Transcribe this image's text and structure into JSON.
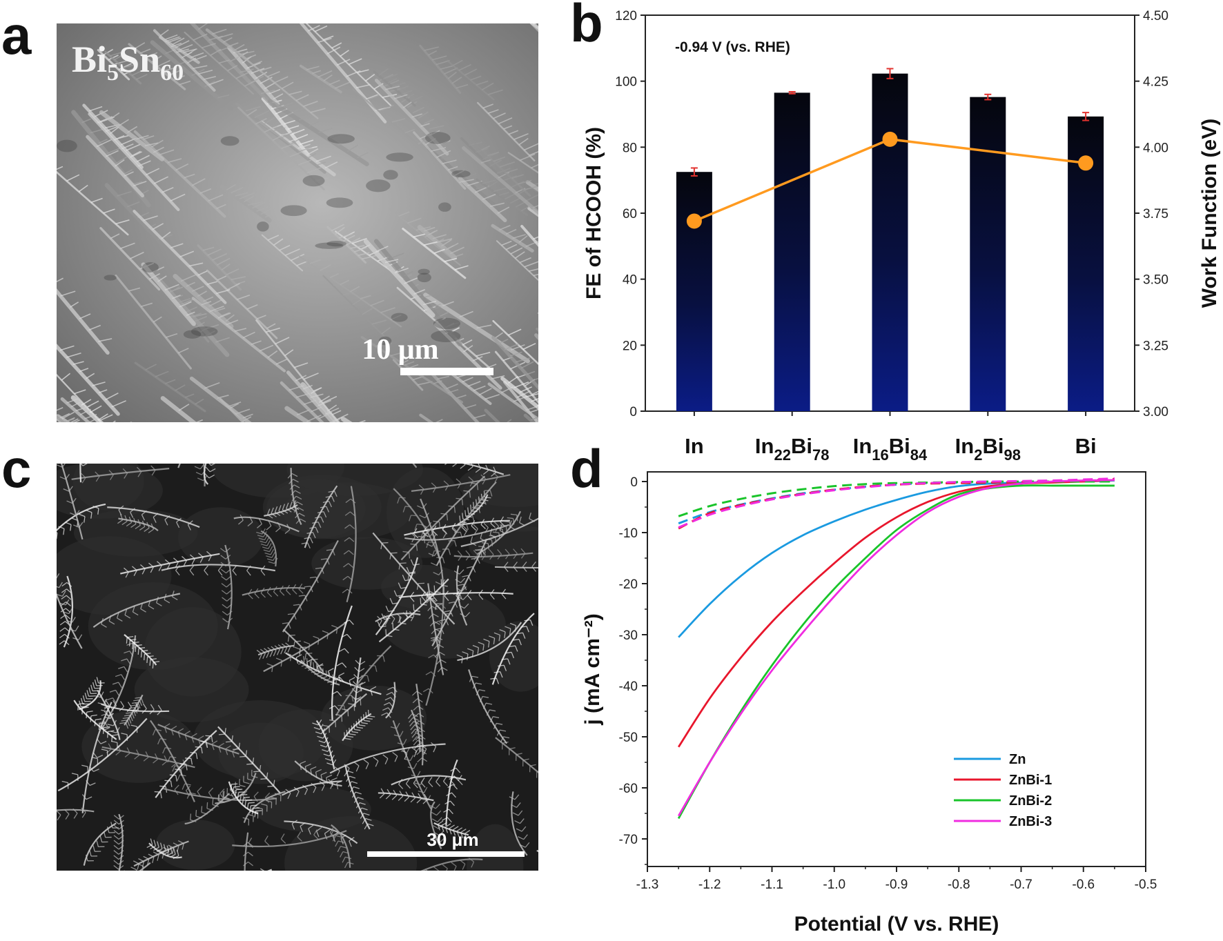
{
  "panels": {
    "a": {
      "letter": "a",
      "label_main": "Bi",
      "label_sub1": "5",
      "label_mid": "Sn",
      "label_sub2": "60",
      "scale_bar": "10 μm"
    },
    "b": {
      "letter": "b",
      "annotation": "-0.94 V (vs. RHE)",
      "ylabel_left": "FE of HCOOH (%)",
      "ylabel_right": "Work Function (eV)"
    },
    "c": {
      "letter": "c",
      "scale_bar": "30 μm"
    },
    "d": {
      "letter": "d",
      "xlabel": "Potential (V vs. RHE)",
      "ylabel": "j (mA cm⁻²)"
    }
  },
  "colors": {
    "bar_top": "#05060d",
    "bar_bottom": "#0a1a7a",
    "work_function_line": "#ff9a1f",
    "error_bar": "#e2332f",
    "zn": "#1a9ae0",
    "znbi1": "#e8162c",
    "znbi2": "#19c42a",
    "znbi3": "#f02ce0"
  },
  "chart_data": [
    {
      "id": "b",
      "type": "bar",
      "categories": [
        {
          "base": "In",
          "parts": []
        },
        {
          "base": "In",
          "parts": [
            [
              "22",
              true
            ],
            [
              "Bi",
              false
            ],
            [
              "78",
              true
            ]
          ]
        },
        {
          "base": "In",
          "parts": [
            [
              "16",
              true
            ],
            [
              "Bi",
              false
            ],
            [
              "84",
              true
            ]
          ]
        },
        {
          "base": "In",
          "parts": [
            [
              "2",
              true
            ],
            [
              "Bi",
              false
            ],
            [
              "98",
              true
            ]
          ]
        },
        {
          "base": "Bi",
          "parts": []
        }
      ],
      "series": [
        {
          "values": [
            72.5,
            96.5,
            102.3,
            95.2,
            89.3
          ],
          "errors": [
            1.2,
            0.3,
            1.5,
            0.8,
            1.2
          ],
          "axis": "left"
        },
        {
          "values": [
            3.72,
            null,
            4.03,
            null,
            3.94
          ],
          "axis": "right",
          "style": "line-marker"
        }
      ],
      "ylim": [
        0,
        120
      ],
      "yticks": [
        0,
        20,
        40,
        60,
        80,
        100,
        120
      ],
      "ylim_right": [
        3.0,
        4.5
      ],
      "yticks_right": [
        "3.00",
        "3.25",
        "3.50",
        "3.75",
        "4.00",
        "4.25",
        "4.50"
      ]
    },
    {
      "id": "d",
      "type": "line",
      "xlim": [
        -1.3,
        -0.5
      ],
      "ylim": [
        -75,
        2
      ],
      "xticks": [
        "-1.3",
        "-1.2",
        "-1.1",
        "-1.0",
        "-0.9",
        "-0.8",
        "-0.7",
        "-0.6",
        "-0.5"
      ],
      "yticks": [
        "0",
        "-10",
        "-20",
        "-30",
        "-40",
        "-50",
        "-60",
        "-70"
      ],
      "legend_position": "bottom-right",
      "series": [
        {
          "name": "Zn",
          "solid": {
            "x": [
              -1.25,
              -1.2,
              -1.15,
              -1.1,
              -1.05,
              -1.0,
              -0.95,
              -0.9,
              -0.85,
              -0.8,
              -0.75,
              -0.7,
              -0.65,
              -0.6,
              -0.55
            ],
            "y": [
              -30.5,
              -24.0,
              -18.5,
              -14.0,
              -10.5,
              -7.8,
              -5.5,
              -3.6,
              -2.0,
              -0.9,
              -0.4,
              -0.2,
              -0.1,
              0.0,
              0.2
            ]
          },
          "dashed": {
            "x": [
              -1.25,
              -1.2,
              -1.15,
              -1.1,
              -1.05,
              -1.0,
              -0.95,
              -0.9,
              -0.85,
              -0.8,
              -0.75,
              -0.7,
              -0.65,
              -0.6,
              -0.55
            ],
            "y": [
              -8.2,
              -6.0,
              -4.5,
              -3.3,
              -2.3,
              -1.6,
              -1.0,
              -0.6,
              -0.3,
              -0.2,
              -0.1,
              -0.1,
              0.0,
              0.0,
              0.0
            ]
          }
        },
        {
          "name": "ZnBi-1",
          "solid": {
            "x": [
              -1.25,
              -1.2,
              -1.15,
              -1.1,
              -1.05,
              -1.0,
              -0.95,
              -0.9,
              -0.85,
              -0.8,
              -0.75,
              -0.7,
              -0.65,
              -0.6,
              -0.55
            ],
            "y": [
              -52.0,
              -42.5,
              -34.5,
              -27.5,
              -21.5,
              -16.0,
              -11.0,
              -7.0,
              -4.0,
              -2.0,
              -0.9,
              -0.4,
              -0.2,
              0.0,
              0.3
            ]
          },
          "dashed": {
            "x": [
              -1.25,
              -1.2,
              -1.15,
              -1.1,
              -1.05,
              -1.0,
              -0.95,
              -0.9,
              -0.85,
              -0.8,
              -0.75,
              -0.7,
              -0.65,
              -0.6,
              -0.55
            ],
            "y": [
              -9.2,
              -6.2,
              -4.6,
              -3.4,
              -2.4,
              -1.6,
              -1.0,
              -0.6,
              -0.4,
              -0.3,
              -0.2,
              -0.1,
              0.0,
              0.2,
              0.5
            ]
          }
        },
        {
          "name": "ZnBi-2",
          "solid": {
            "x": [
              -1.25,
              -1.2,
              -1.15,
              -1.1,
              -1.05,
              -1.0,
              -0.95,
              -0.9,
              -0.85,
              -0.8,
              -0.75,
              -0.7,
              -0.65,
              -0.6,
              -0.55
            ],
            "y": [
              -66.0,
              -55.0,
              -45.0,
              -36.0,
              -28.0,
              -21.0,
              -15.0,
              -9.5,
              -5.5,
              -2.5,
              -1.3,
              -0.8,
              -0.8,
              -0.8,
              -0.8
            ]
          },
          "dashed": {
            "x": [
              -1.25,
              -1.2,
              -1.15,
              -1.1,
              -1.05,
              -1.0,
              -0.95,
              -0.9,
              -0.85,
              -0.8,
              -0.75,
              -0.7,
              -0.65,
              -0.6,
              -0.55
            ],
            "y": [
              -6.8,
              -4.8,
              -3.4,
              -2.3,
              -1.5,
              -0.9,
              -0.5,
              -0.3,
              -0.2,
              -0.1,
              0.0,
              0.0,
              0.0,
              0.0,
              0.0
            ]
          }
        },
        {
          "name": "ZnBi-3",
          "solid": {
            "x": [
              -1.25,
              -1.2,
              -1.15,
              -1.1,
              -1.05,
              -1.0,
              -0.95,
              -0.9,
              -0.85,
              -0.8,
              -0.75,
              -0.7,
              -0.65,
              -0.6,
              -0.55
            ],
            "y": [
              -65.5,
              -55.0,
              -45.5,
              -37.0,
              -29.5,
              -22.5,
              -16.0,
              -10.5,
              -6.0,
              -3.0,
              -1.2,
              -0.4,
              0.0,
              0.2,
              0.3
            ]
          },
          "dashed": {
            "x": [
              -1.25,
              -1.2,
              -1.15,
              -1.1,
              -1.05,
              -1.0,
              -0.95,
              -0.9,
              -0.85,
              -0.8,
              -0.75,
              -0.7,
              -0.65,
              -0.6,
              -0.55
            ],
            "y": [
              -9.0,
              -6.5,
              -4.8,
              -3.5,
              -2.5,
              -1.7,
              -1.1,
              -0.6,
              -0.3,
              -0.1,
              0.0,
              0.1,
              0.2,
              0.4,
              0.6
            ]
          }
        }
      ]
    }
  ]
}
